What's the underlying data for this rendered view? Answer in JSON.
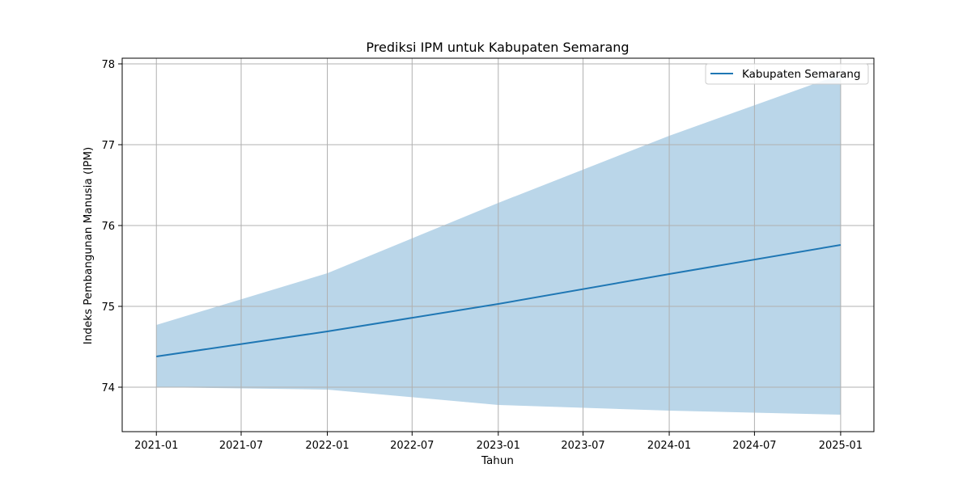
{
  "chart_data": {
    "type": "line",
    "title": "Prediksi IPM untuk Kabupaten Semarang",
    "xlabel": "Tahun",
    "ylabel": "Indeks Pembangunan Manusia (IPM)",
    "x": [
      "2021-01-01",
      "2022-01-01",
      "2023-01-01",
      "2024-01-01",
      "2025-01-01"
    ],
    "series": [
      {
        "name": "Kabupaten Semarang",
        "values": [
          74.38,
          74.69,
          75.03,
          75.4,
          75.76
        ],
        "lower": [
          74.0,
          73.97,
          73.78,
          73.71,
          73.66
        ],
        "upper": [
          74.77,
          75.41,
          76.28,
          77.11,
          77.87
        ],
        "color": "#1f77b4",
        "band_color": "#bad6e9"
      }
    ],
    "xticks": [
      "2021-01",
      "2021-07",
      "2022-01",
      "2022-07",
      "2023-01",
      "2023-07",
      "2024-01",
      "2024-07",
      "2025-01"
    ],
    "yticks": [
      "74",
      "75",
      "76",
      "77",
      "78"
    ],
    "ylim": [
      73.45,
      78.07
    ],
    "xlim": [
      "2020-10-20",
      "2025-03-13"
    ],
    "grid": true,
    "legend_position": "upper right"
  }
}
